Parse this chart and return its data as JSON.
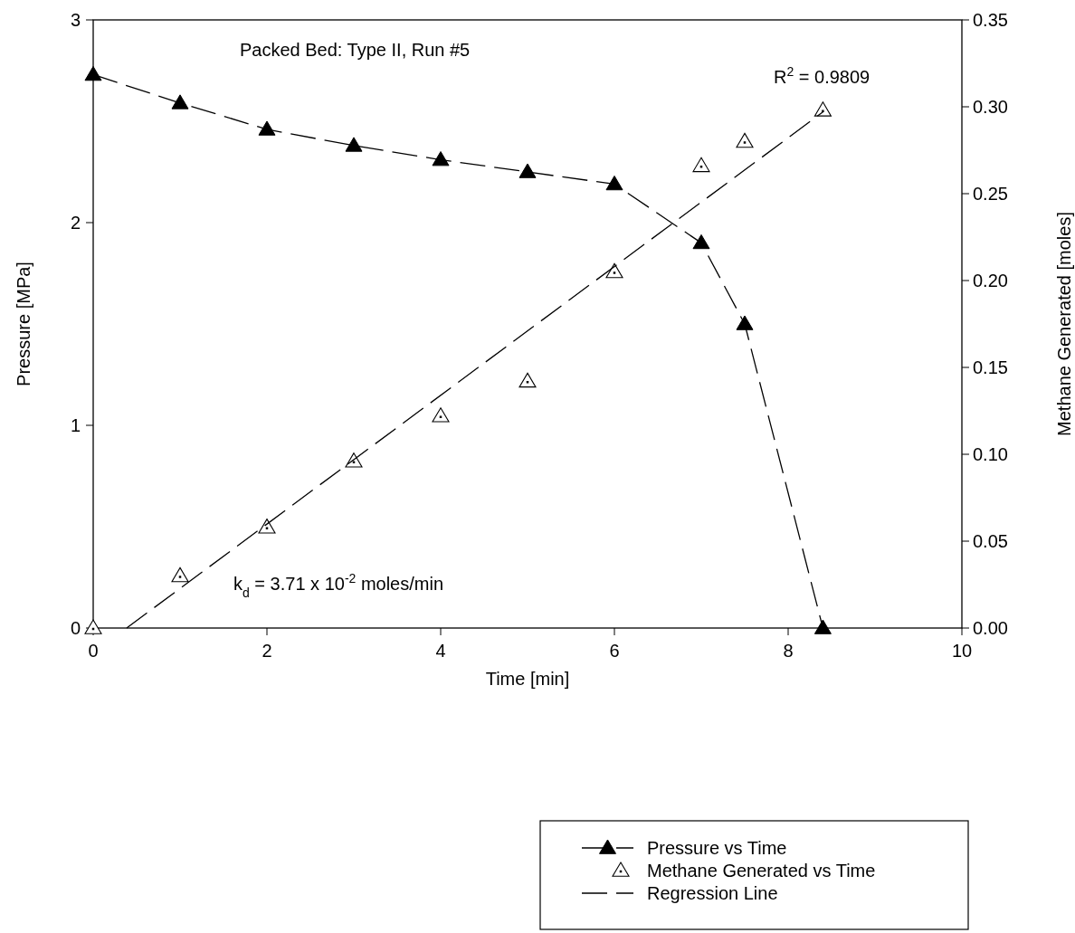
{
  "chart_data": {
    "type": "line",
    "xlabel": "Time [min]",
    "ylabel": "Pressure [MPa]",
    "y2label": "Methane Generated [moles]",
    "xlim": [
      0,
      10
    ],
    "xticks": [
      0,
      2,
      4,
      6,
      8,
      10
    ],
    "ylim": [
      0,
      3
    ],
    "yticks": [
      0,
      1,
      2,
      3
    ],
    "y2lim": [
      0,
      0.35
    ],
    "y2ticks": [
      {
        "value": 0,
        "label": "0.00"
      },
      {
        "value": 0.05,
        "label": "0.05"
      },
      {
        "value": 0.1,
        "label": "0.10"
      },
      {
        "value": 0.15,
        "label": "0.15"
      },
      {
        "value": 0.2,
        "label": "0.20"
      },
      {
        "value": 0.25,
        "label": "0.25"
      },
      {
        "value": 0.3,
        "label": "0.30"
      },
      {
        "value": 0.35,
        "label": "0.35"
      }
    ],
    "grid": false,
    "legend": "bottom right",
    "annotations": [
      "Packed Bed: Type II, Run #5",
      "R$^{2}$ = 0.9809",
      "k$_{d}$ = 3.71 x 10$^{-2}$ moles/min"
    ],
    "series": [
      {
        "name": "Pressure vs Time",
        "color": "#000000",
        "marker": "triangle",
        "line_style": "dashed",
        "x": [
          0,
          1,
          2,
          3,
          4,
          5,
          6,
          7,
          7.5,
          8.4
        ],
        "values": [
          2.73,
          2.59,
          2.46,
          2.38,
          2.31,
          2.25,
          2.19,
          1.9,
          1.5,
          0
        ]
      },
      {
        "name": "Methane Generated vs Time",
        "type": "scatter",
        "axis": "y2",
        "color": "#000000",
        "marker": "triangle",
        "x": [
          0,
          1,
          2,
          3,
          4,
          5,
          6,
          7,
          7.5,
          8.4
        ],
        "values": [
          0,
          0.03,
          0.058,
          0.096,
          0.122,
          0.142,
          0.205,
          0.266,
          0.28,
          0.298
        ]
      },
      {
        "name": "Regression Line",
        "type": "line",
        "axis": "y2",
        "color": "#000000",
        "marker": "none",
        "line_style": "dashed",
        "x": [
          0.385,
          8.4
        ],
        "values": [
          0,
          0.297
        ]
      }
    ]
  }
}
